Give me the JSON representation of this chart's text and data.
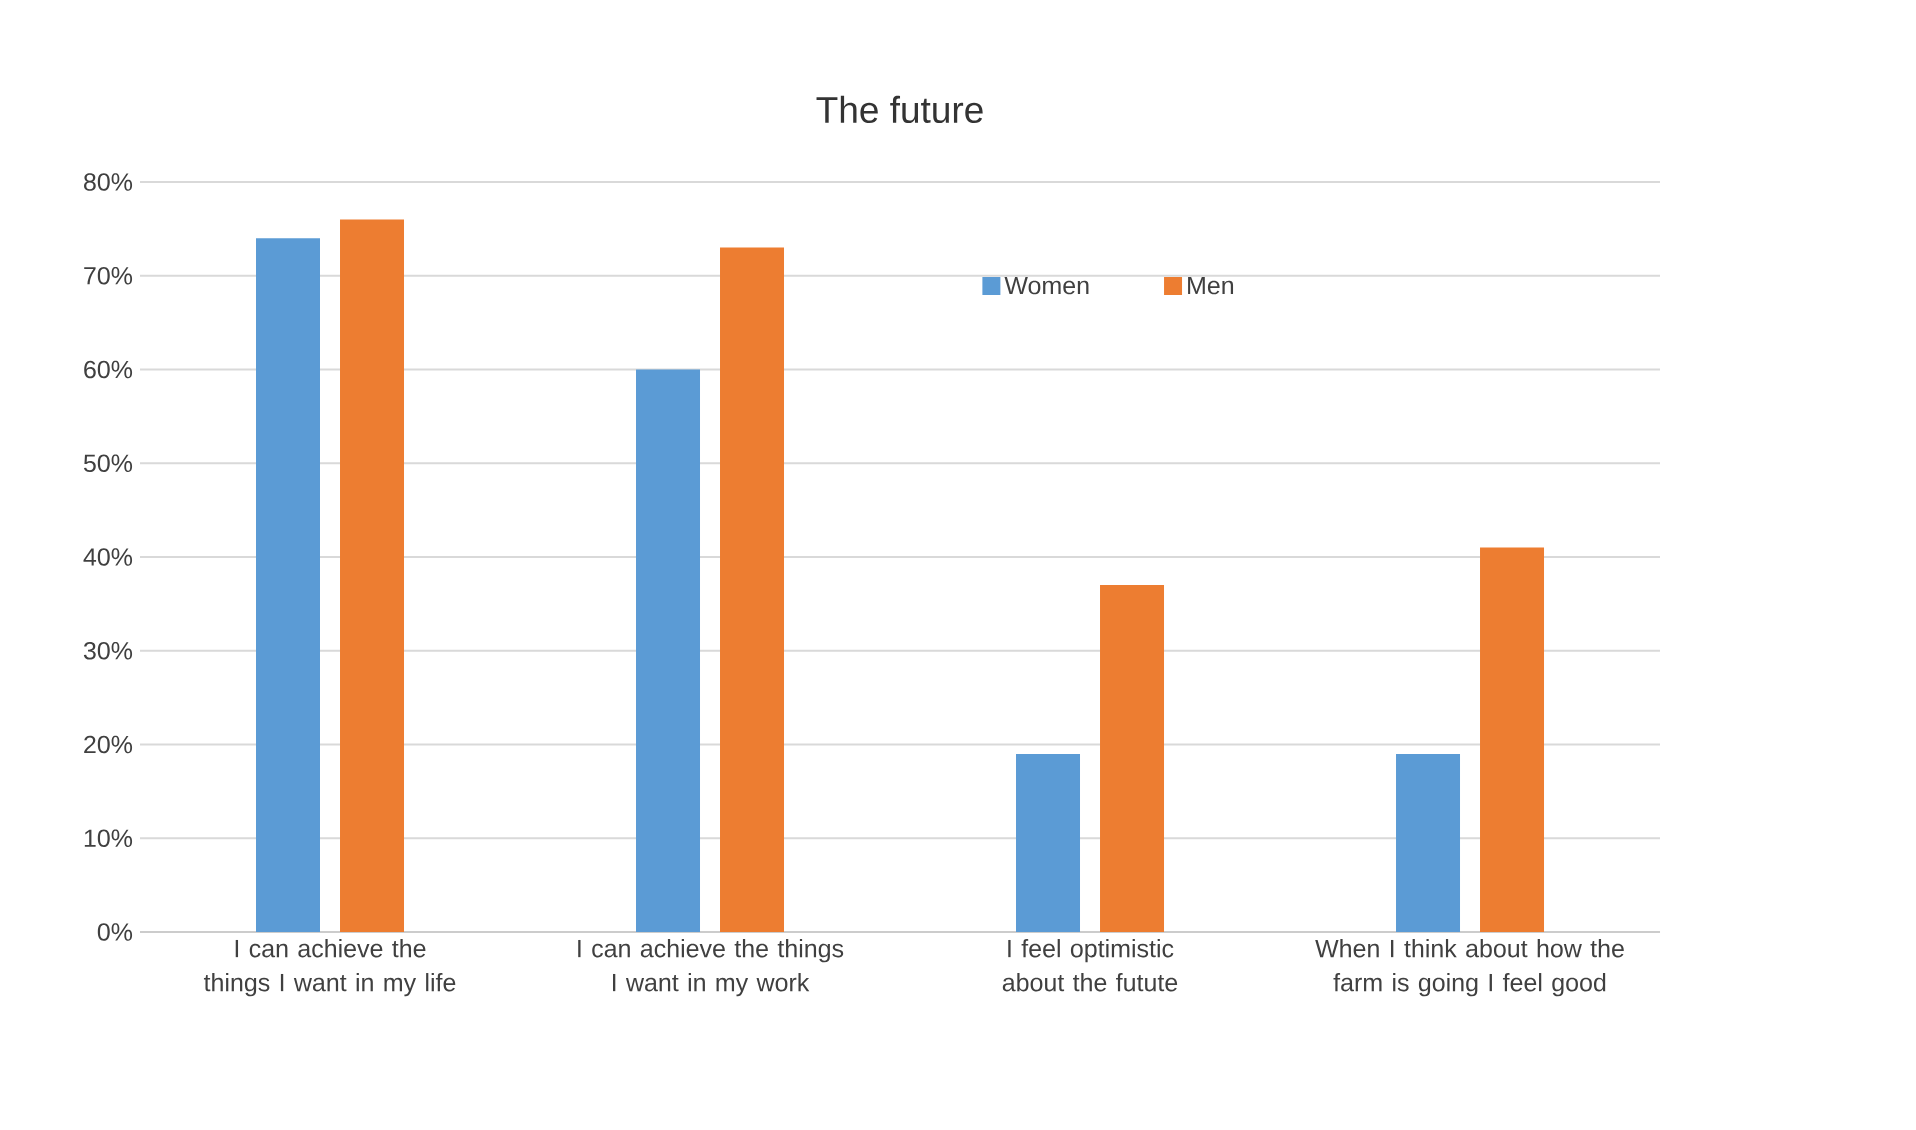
{
  "chart_data": {
    "type": "bar",
    "title": "The future",
    "categories": [
      "I can achieve the things I want in my life",
      "I can achieve the things I want in my work",
      "I feel optimistic about the futute",
      "When I think about how the farm is going I feel good"
    ],
    "series": [
      {
        "name": "Women",
        "color": "#5b9bd5",
        "values": [
          74,
          60,
          19,
          19
        ]
      },
      {
        "name": "Men",
        "color": "#ed7d31",
        "values": [
          76,
          73,
          37,
          41
        ]
      }
    ],
    "ylim": [
      0,
      80
    ],
    "yticks": [
      {
        "value": 0,
        "label": "0%"
      },
      {
        "value": 10,
        "label": "10%"
      },
      {
        "value": 20,
        "label": "20%"
      },
      {
        "value": 30,
        "label": "30%"
      },
      {
        "value": 40,
        "label": "40%"
      },
      {
        "value": 50,
        "label": "50%"
      },
      {
        "value": 60,
        "label": "60%"
      },
      {
        "value": 70,
        "label": "70%"
      },
      {
        "value": 80,
        "label": "80%"
      }
    ],
    "grid": "y",
    "legend": "top right"
  }
}
